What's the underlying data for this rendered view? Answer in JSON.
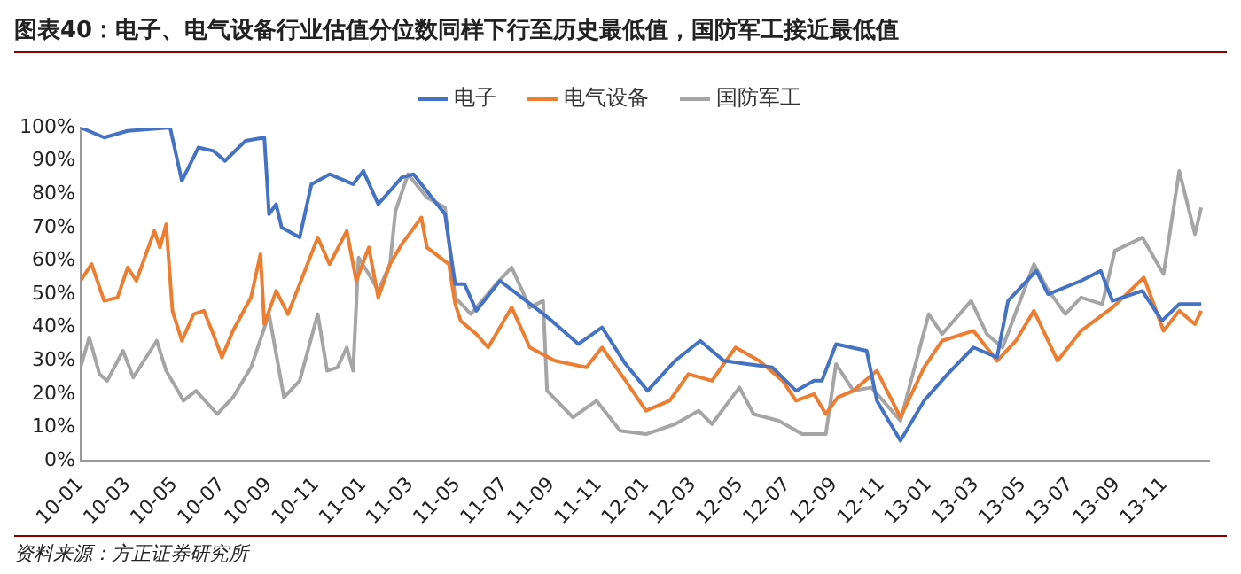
{
  "chart_data": {
    "type": "line",
    "title": "图表40：电子、电气设备行业估值分位数同样下行至历史最低值，国防军工接近最低值",
    "annotations": [
      "资料来源：方正证券研究所"
    ],
    "legend": "top",
    "grid": false,
    "xlim": [
      "2010-01-01",
      "2013-12-28"
    ],
    "xticks": [
      {
        "value": "2010-01-01",
        "label": "10-01"
      },
      {
        "value": "2010-03-01",
        "label": "10-03"
      },
      {
        "value": "2010-05-01",
        "label": "10-05"
      },
      {
        "value": "2010-07-01",
        "label": "10-07"
      },
      {
        "value": "2010-09-01",
        "label": "10-09"
      },
      {
        "value": "2010-11-01",
        "label": "10-11"
      },
      {
        "value": "2011-01-01",
        "label": "11-01"
      },
      {
        "value": "2011-03-01",
        "label": "11-03"
      },
      {
        "value": "2011-05-01",
        "label": "11-05"
      },
      {
        "value": "2011-07-01",
        "label": "11-07"
      },
      {
        "value": "2011-09-01",
        "label": "11-09"
      },
      {
        "value": "2011-11-01",
        "label": "11-11"
      },
      {
        "value": "2012-01-01",
        "label": "12-01"
      },
      {
        "value": "2012-03-01",
        "label": "12-03"
      },
      {
        "value": "2012-05-01",
        "label": "12-05"
      },
      {
        "value": "2012-07-01",
        "label": "12-07"
      },
      {
        "value": "2012-09-01",
        "label": "12-09"
      },
      {
        "value": "2012-11-01",
        "label": "12-11"
      },
      {
        "value": "2013-01-01",
        "label": "13-01"
      },
      {
        "value": "2013-03-01",
        "label": "13-03"
      },
      {
        "value": "2013-05-01",
        "label": "13-05"
      },
      {
        "value": "2013-07-01",
        "label": "13-07"
      },
      {
        "value": "2013-09-01",
        "label": "13-09"
      },
      {
        "value": "2013-11-01",
        "label": "13-11"
      }
    ],
    "ylim": [
      0,
      100
    ],
    "yticks": [
      {
        "value": 0,
        "label": "0%"
      },
      {
        "value": 10,
        "label": "10%"
      },
      {
        "value": 20,
        "label": "20%"
      },
      {
        "value": 30,
        "label": "30%"
      },
      {
        "value": 40,
        "label": "40%"
      },
      {
        "value": 50,
        "label": "50%"
      },
      {
        "value": 60,
        "label": "60%"
      },
      {
        "value": 70,
        "label": "70%"
      },
      {
        "value": 80,
        "label": "80%"
      },
      {
        "value": 90,
        "label": "90%"
      },
      {
        "value": 100,
        "label": "100%"
      }
    ],
    "series": [
      {
        "name": "电子",
        "color": "#4472c4",
        "x": [
          "2010-01-01",
          "2010-02-01",
          "2010-03-01",
          "2010-04-25",
          "2010-05-10",
          "2010-06-01",
          "2010-06-20",
          "2010-07-05",
          "2010-08-01",
          "2010-08-25",
          "2010-09-01",
          "2010-09-10",
          "2010-09-17",
          "2010-10-10",
          "2010-10-25",
          "2010-11-18",
          "2010-12-18",
          "2011-01-01",
          "2011-01-20",
          "2011-02-20",
          "2011-03-05",
          "2011-04-15",
          "2011-04-28",
          "2011-05-10",
          "2011-05-25",
          "2011-06-25",
          "2011-08-15",
          "2011-09-01",
          "2011-10-05",
          "2011-11-05",
          "2011-12-05",
          "2012-01-03",
          "2012-02-08",
          "2012-03-10",
          "2012-04-10",
          "2012-05-10",
          "2012-06-12",
          "2012-07-12",
          "2012-08-05",
          "2012-08-15",
          "2012-09-03",
          "2012-10-12",
          "2012-10-25",
          "2012-11-25",
          "2012-12-25",
          "2013-01-25",
          "2013-02-28",
          "2013-03-28",
          "2013-04-12",
          "2013-05-18",
          "2013-06-03",
          "2013-07-15",
          "2013-08-10",
          "2013-08-25",
          "2013-10-03",
          "2013-10-28",
          "2013-11-20",
          "2013-12-18"
        ],
        "values": [
          100,
          97,
          99,
          100,
          84,
          94,
          93,
          90,
          96,
          97,
          74,
          77,
          70,
          67,
          83,
          86,
          83,
          87,
          77,
          85,
          86,
          74,
          53,
          53,
          45,
          54,
          45,
          42,
          35,
          40,
          29,
          21,
          30,
          36,
          30,
          29,
          28,
          21,
          24,
          24,
          35,
          33,
          18,
          6,
          18,
          26,
          34,
          31,
          48,
          57,
          50,
          54,
          57,
          48,
          51,
          42,
          47,
          47
        ]
      },
      {
        "name": "电气设备",
        "color": "#ed7d31",
        "x": [
          "2010-01-01",
          "2010-01-15",
          "2010-02-01",
          "2010-02-18",
          "2010-03-01",
          "2010-03-12",
          "2010-04-05",
          "2010-04-12",
          "2010-04-20",
          "2010-04-28",
          "2010-05-10",
          "2010-05-25",
          "2010-06-08",
          "2010-06-20",
          "2010-07-01",
          "2010-07-15",
          "2010-08-08",
          "2010-08-20",
          "2010-08-25",
          "2010-09-10",
          "2010-09-25",
          "2010-10-10",
          "2010-11-03",
          "2010-11-18",
          "2010-12-10",
          "2010-12-22",
          "2011-01-08",
          "2011-01-20",
          "2011-02-05",
          "2011-02-20",
          "2011-03-15",
          "2011-03-22",
          "2011-04-20",
          "2011-04-28",
          "2011-05-05",
          "2011-05-25",
          "2011-06-10",
          "2011-07-10",
          "2011-08-03",
          "2011-09-05",
          "2011-10-15",
          "2011-11-05",
          "2011-12-05",
          "2012-01-01",
          "2012-02-01",
          "2012-02-25",
          "2012-03-25",
          "2012-04-25",
          "2012-05-25",
          "2012-06-25",
          "2012-07-12",
          "2012-08-05",
          "2012-08-20",
          "2012-09-05",
          "2012-09-25",
          "2012-10-25",
          "2012-11-25",
          "2012-12-25",
          "2013-01-18",
          "2013-02-28",
          "2013-03-28",
          "2013-04-22",
          "2013-05-15",
          "2013-06-15",
          "2013-07-15",
          "2013-08-25",
          "2013-10-05",
          "2013-10-30",
          "2013-11-20",
          "2013-12-10",
          "2013-12-18"
        ],
        "values": [
          54,
          59,
          48,
          49,
          58,
          54,
          69,
          64,
          71,
          45,
          36,
          44,
          45,
          38,
          31,
          39,
          49,
          62,
          41,
          51,
          44,
          53,
          67,
          59,
          69,
          54,
          64,
          49,
          59,
          65,
          73,
          64,
          59,
          47,
          42,
          38,
          34,
          46,
          34,
          30,
          28,
          34,
          24,
          15,
          18,
          26,
          24,
          34,
          30,
          24,
          18,
          20,
          14,
          19,
          21,
          27,
          13,
          28,
          36,
          39,
          30,
          36,
          45,
          30,
          39,
          46,
          55,
          39,
          45,
          41,
          45
        ]
      },
      {
        "name": "国防军工",
        "color": "#a5a5a5",
        "x": [
          "2010-01-01",
          "2010-01-12",
          "2010-01-25",
          "2010-02-05",
          "2010-02-25",
          "2010-03-08",
          "2010-04-08",
          "2010-04-20",
          "2010-05-05",
          "2010-05-12",
          "2010-05-28",
          "2010-06-25",
          "2010-07-15",
          "2010-08-08",
          "2010-09-01",
          "2010-09-20",
          "2010-10-10",
          "2010-11-03",
          "2010-11-15",
          "2010-11-28",
          "2010-12-10",
          "2010-12-18",
          "2010-12-25",
          "2011-01-08",
          "2011-01-20",
          "2011-02-05",
          "2011-02-12",
          "2011-02-28",
          "2011-03-22",
          "2011-04-15",
          "2011-04-28",
          "2011-05-18",
          "2011-06-20",
          "2011-07-10",
          "2011-08-03",
          "2011-08-20",
          "2011-08-25",
          "2011-09-28",
          "2011-10-28",
          "2011-11-28",
          "2012-01-01",
          "2012-02-08",
          "2012-03-08",
          "2012-03-25",
          "2012-04-30",
          "2012-05-18",
          "2012-06-20",
          "2012-07-20",
          "2012-08-20",
          "2012-09-03",
          "2012-09-25",
          "2012-10-18",
          "2012-11-25",
          "2013-01-01",
          "2013-01-18",
          "2013-02-25",
          "2013-03-15",
          "2013-04-05",
          "2013-05-15",
          "2013-06-01",
          "2013-06-25",
          "2013-07-15",
          "2013-08-12",
          "2013-08-28",
          "2013-10-03",
          "2013-10-30",
          "2013-11-20",
          "2013-12-10",
          "2013-12-18"
        ],
        "values": [
          28,
          37,
          26,
          24,
          33,
          25,
          36,
          27,
          21,
          18,
          21,
          14,
          19,
          28,
          44,
          19,
          24,
          44,
          27,
          28,
          34,
          27,
          61,
          56,
          51,
          59,
          75,
          86,
          79,
          76,
          49,
          44,
          53,
          58,
          46,
          48,
          21,
          13,
          18,
          9,
          8,
          11,
          15,
          11,
          22,
          14,
          12,
          8,
          8,
          29,
          21,
          22,
          12,
          44,
          38,
          48,
          38,
          34,
          59,
          52,
          44,
          49,
          47,
          63,
          67,
          56,
          87,
          68,
          76
        ]
      }
    ]
  }
}
